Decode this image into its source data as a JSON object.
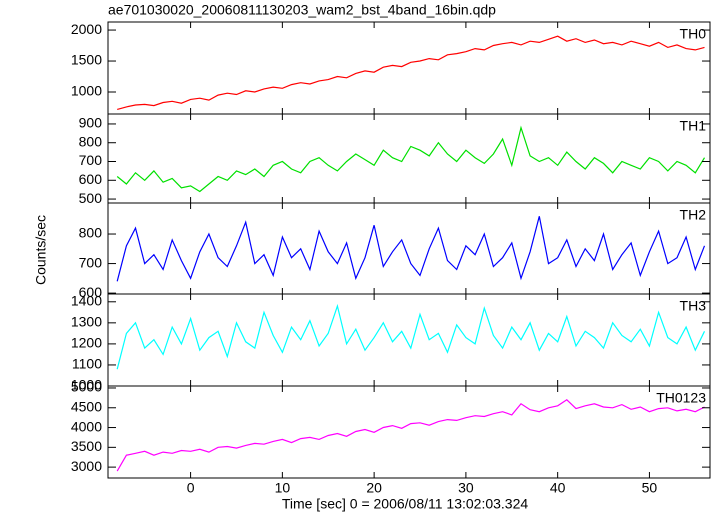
{
  "chart_data": {
    "type": "line",
    "title": "ae701030020_20060811130203_wam2_bst_4band_16bin.qdp",
    "xlabel": "Time [sec] 0 = 2006/08/11 13:02:03.324",
    "ylabel": "Counts/sec",
    "xlim": [
      -9,
      56.6
    ],
    "xticks": [
      0,
      10,
      20,
      30,
      40,
      50
    ],
    "x": [
      -8,
      -7,
      -6,
      -5,
      -4,
      -3,
      -2,
      -1,
      0,
      1,
      2,
      3,
      4,
      5,
      6,
      7,
      8,
      9,
      10,
      11,
      12,
      13,
      14,
      15,
      16,
      17,
      18,
      19,
      20,
      21,
      22,
      23,
      24,
      25,
      26,
      27,
      28,
      29,
      30,
      31,
      32,
      33,
      34,
      35,
      36,
      37,
      38,
      39,
      40,
      41,
      42,
      43,
      44,
      45,
      46,
      47,
      48,
      49,
      50,
      51,
      52,
      53,
      54,
      55,
      56
    ],
    "series": [
      {
        "name": "TH0",
        "color": "#ff0000",
        "ylim": [
          645,
          2130
        ],
        "yticks": [
          1000,
          1500,
          2000
        ],
        "values": [
          720,
          760,
          790,
          800,
          780,
          830,
          850,
          820,
          880,
          900,
          870,
          950,
          980,
          960,
          1020,
          1000,
          1050,
          1080,
          1060,
          1120,
          1150,
          1130,
          1180,
          1200,
          1250,
          1230,
          1300,
          1340,
          1320,
          1400,
          1430,
          1410,
          1480,
          1500,
          1540,
          1520,
          1600,
          1620,
          1650,
          1700,
          1680,
          1750,
          1780,
          1800,
          1760,
          1820,
          1800,
          1850,
          1900,
          1820,
          1860,
          1800,
          1840,
          1780,
          1800,
          1760,
          1820,
          1780,
          1740,
          1800,
          1720,
          1760,
          1700,
          1680,
          1720
        ]
      },
      {
        "name": "TH1",
        "color": "#00e000",
        "ylim": [
          479,
          953
        ],
        "yticks": [
          500,
          600,
          700,
          800,
          900
        ],
        "values": [
          620,
          580,
          640,
          600,
          650,
          590,
          610,
          560,
          570,
          540,
          580,
          620,
          600,
          650,
          630,
          660,
          620,
          680,
          700,
          660,
          640,
          700,
          720,
          680,
          650,
          700,
          740,
          710,
          680,
          760,
          720,
          700,
          780,
          760,
          730,
          800,
          740,
          700,
          760,
          720,
          690,
          740,
          820,
          680,
          880,
          730,
          700,
          720,
          680,
          750,
          700,
          660,
          720,
          690,
          640,
          700,
          680,
          660,
          720,
          700,
          650,
          700,
          680,
          640,
          720
        ]
      },
      {
        "name": "TH2",
        "color": "#0000ff",
        "ylim": [
          597,
          905
        ],
        "yticks": [
          600,
          700,
          800
        ],
        "values": [
          640,
          760,
          820,
          700,
          730,
          680,
          780,
          710,
          650,
          740,
          800,
          720,
          690,
          760,
          840,
          700,
          730,
          660,
          790,
          720,
          750,
          680,
          810,
          740,
          700,
          770,
          650,
          720,
          830,
          690,
          740,
          780,
          700,
          660,
          750,
          820,
          710,
          680,
          760,
          730,
          800,
          690,
          720,
          770,
          650,
          740,
          860,
          700,
          720,
          780,
          690,
          750,
          710,
          800,
          680,
          730,
          770,
          660,
          740,
          810,
          700,
          720,
          790,
          680,
          760
        ]
      },
      {
        "name": "TH3",
        "color": "#00ffff",
        "ylim": [
          1000,
          1437
        ],
        "yticks": [
          1000,
          1100,
          1200,
          1300,
          1400
        ],
        "values": [
          1080,
          1250,
          1300,
          1180,
          1220,
          1150,
          1280,
          1200,
          1320,
          1170,
          1230,
          1260,
          1140,
          1300,
          1210,
          1180,
          1350,
          1240,
          1160,
          1280,
          1220,
          1310,
          1190,
          1250,
          1380,
          1200,
          1270,
          1170,
          1230,
          1300,
          1210,
          1260,
          1180,
          1340,
          1220,
          1250,
          1160,
          1290,
          1230,
          1200,
          1370,
          1240,
          1180,
          1280,
          1220,
          1300,
          1170,
          1250,
          1210,
          1330,
          1190,
          1260,
          1230,
          1180,
          1300,
          1240,
          1210,
          1270,
          1190,
          1350,
          1230,
          1200,
          1280,
          1170,
          1260
        ]
      },
      {
        "name": "TH0123",
        "color": "#ff00ff",
        "ylim": [
          2725,
          5050
        ],
        "yticks": [
          3000,
          3500,
          4000,
          4500,
          5000
        ],
        "values": [
          2900,
          3300,
          3350,
          3400,
          3300,
          3380,
          3350,
          3420,
          3400,
          3450,
          3380,
          3500,
          3520,
          3480,
          3550,
          3600,
          3580,
          3650,
          3700,
          3620,
          3720,
          3750,
          3700,
          3800,
          3850,
          3780,
          3900,
          3950,
          3880,
          4000,
          4050,
          3980,
          4100,
          4120,
          4060,
          4150,
          4200,
          4180,
          4250,
          4300,
          4280,
          4350,
          4400,
          4320,
          4600,
          4450,
          4400,
          4500,
          4550,
          4700,
          4480,
          4550,
          4600,
          4520,
          4500,
          4580,
          4460,
          4520,
          4400,
          4480,
          4500,
          4420,
          4460,
          4400,
          4520
        ]
      }
    ]
  }
}
